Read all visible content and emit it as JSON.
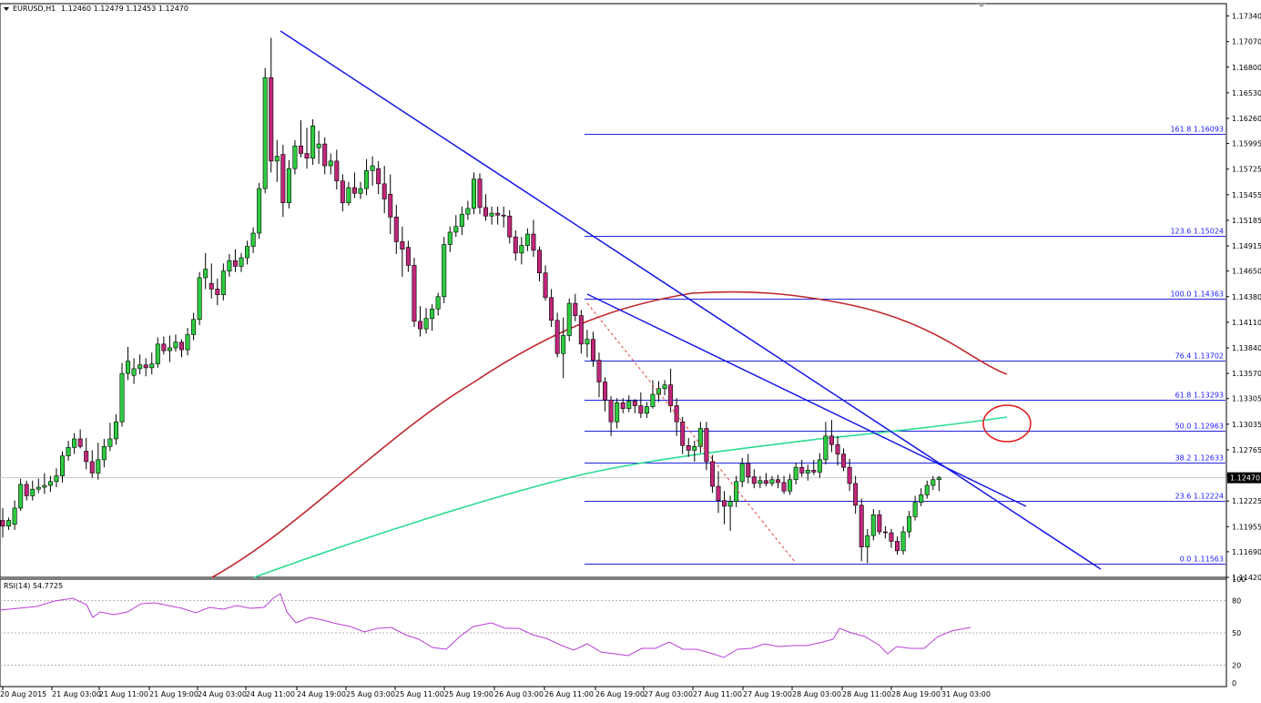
{
  "header": {
    "symbol": "EURUSD,H1",
    "ohlc": "1.12460 1.12479 1.12453 1.12470"
  },
  "rsi_header": "RSI(14) 54.7725",
  "colors": {
    "background": "#ffffff",
    "grid": "#e4e4e4",
    "frame": "#000000",
    "bull": "#2ecc40",
    "bear": "#c0277a",
    "trendline": "#1616e6",
    "fib": "#2222dd",
    "ma_slow": "#c0262c",
    "ma_fast": "#2cdc94",
    "rsi": "#b73fd6",
    "retrace_dash": "#e0403a",
    "circle": "#e01818",
    "price_tag": "#000000"
  },
  "chart_data": {
    "type": "candlestick",
    "title": "EURUSD,H1",
    "ylim": [
      1.1142,
      1.1747
    ],
    "price_ticks": [
      "1.17340",
      "1.17070",
      "1.16800",
      "1.16530",
      "1.16260",
      "1.15995",
      "1.15725",
      "1.15455",
      "1.15185",
      "1.14915",
      "1.14650",
      "1.14380",
      "1.14110",
      "1.13840",
      "1.13570",
      "1.13305",
      "1.13035",
      "1.12765",
      "1.12495",
      "1.12225",
      "1.11955",
      "1.11690",
      "1.11420"
    ],
    "current_price": "1.12470",
    "x_ticks": [
      "20 Aug 2015",
      "21 Aug 03:00",
      "21 Aug 11:00",
      "21 Aug 19:00",
      "24 Aug 03:00",
      "24 Aug 11:00",
      "24 Aug 19:00",
      "25 Aug 03:00",
      "25 Aug 11:00",
      "25 Aug 19:00",
      "26 Aug 03:00",
      "26 Aug 11:00",
      "26 Aug 19:00",
      "27 Aug 03:00",
      "27 Aug 11:00",
      "27 Aug 19:00",
      "28 Aug 03:00",
      "28 Aug 11:00",
      "28 Aug 19:00",
      "31 Aug 03:00"
    ],
    "fib_levels": [
      {
        "label": "161.8 1.16093",
        "price": 1.16093
      },
      {
        "label": "123.6 1.15024",
        "price": 1.15024
      },
      {
        "label": "100.0 1.14363",
        "price": 1.14363
      },
      {
        "label": "76.4 1.13702",
        "price": 1.13702
      },
      {
        "label": "61.8 1.13293",
        "price": 1.13293
      },
      {
        "label": "50.0 1.12963",
        "price": 1.12963
      },
      {
        "label": "38.2 1.12633",
        "price": 1.12633
      },
      {
        "label": "23.6 1.12224",
        "price": 1.12224
      },
      {
        "label": "0.0 1.11563",
        "price": 1.11563
      }
    ],
    "candles": [
      [
        1.1202,
        1.1215,
        1.1184,
        1.1196
      ],
      [
        1.1196,
        1.1205,
        1.1192,
        1.1202
      ],
      [
        1.1198,
        1.1223,
        1.1192,
        1.1215
      ],
      [
        1.1215,
        1.1246,
        1.1212,
        1.124
      ],
      [
        1.124,
        1.1244,
        1.1223,
        1.1228
      ],
      [
        1.1228,
        1.1244,
        1.1223,
        1.1235
      ],
      [
        1.1235,
        1.1246,
        1.1231,
        1.1237
      ],
      [
        1.1237,
        1.1252,
        1.123,
        1.1239
      ],
      [
        1.1239,
        1.1249,
        1.1232,
        1.1243
      ],
      [
        1.1243,
        1.1257,
        1.1237,
        1.1249
      ],
      [
        1.1249,
        1.1275,
        1.1242,
        1.127
      ],
      [
        1.127,
        1.1286,
        1.1265,
        1.1279
      ],
      [
        1.1279,
        1.1294,
        1.1272,
        1.1288
      ],
      [
        1.1288,
        1.1298,
        1.1278,
        1.128
      ],
      [
        1.1275,
        1.1289,
        1.1256,
        1.1264
      ],
      [
        1.1264,
        1.1276,
        1.1247,
        1.1252
      ],
      [
        1.1252,
        1.1284,
        1.1245,
        1.1266
      ],
      [
        1.1266,
        1.1288,
        1.1258,
        1.128
      ],
      [
        1.128,
        1.1305,
        1.1275,
        1.1288
      ],
      [
        1.1288,
        1.1314,
        1.1282,
        1.1306
      ],
      [
        1.1306,
        1.1368,
        1.1301,
        1.1357
      ],
      [
        1.1357,
        1.1385,
        1.135,
        1.137
      ],
      [
        1.1355,
        1.1373,
        1.1346,
        1.1362
      ],
      [
        1.1362,
        1.1377,
        1.1356,
        1.1366
      ],
      [
        1.1366,
        1.1373,
        1.1354,
        1.1363
      ],
      [
        1.1363,
        1.1379,
        1.1356,
        1.1367
      ],
      [
        1.1367,
        1.1395,
        1.1363,
        1.1388
      ],
      [
        1.1388,
        1.1396,
        1.1377,
        1.1381
      ],
      [
        1.1381,
        1.1397,
        1.1369,
        1.1384
      ],
      [
        1.1384,
        1.1398,
        1.138,
        1.139
      ],
      [
        1.139,
        1.1393,
        1.1374,
        1.1382
      ],
      [
        1.1382,
        1.1405,
        1.1376,
        1.1398
      ],
      [
        1.1398,
        1.1421,
        1.1392,
        1.1414
      ],
      [
        1.1414,
        1.1464,
        1.1408,
        1.1458
      ],
      [
        1.1458,
        1.1484,
        1.1446,
        1.1467
      ],
      [
        1.1452,
        1.1473,
        1.1436,
        1.1446
      ],
      [
        1.1446,
        1.1457,
        1.1429,
        1.144
      ],
      [
        1.144,
        1.1473,
        1.1434,
        1.1465
      ],
      [
        1.1465,
        1.1483,
        1.1459,
        1.1476
      ],
      [
        1.1476,
        1.1488,
        1.1464,
        1.147
      ],
      [
        1.147,
        1.1484,
        1.1464,
        1.1479
      ],
      [
        1.1479,
        1.1497,
        1.1472,
        1.1491
      ],
      [
        1.1491,
        1.1511,
        1.1484,
        1.1505
      ],
      [
        1.1505,
        1.1558,
        1.1499,
        1.1552
      ],
      [
        1.1552,
        1.1679,
        1.1547,
        1.1669
      ],
      [
        1.1669,
        1.1711,
        1.1569,
        1.1581
      ],
      [
        1.1581,
        1.1603,
        1.1559,
        1.1586
      ],
      [
        1.1588,
        1.1598,
        1.1522,
        1.1537
      ],
      [
        1.1537,
        1.1582,
        1.1531,
        1.1573
      ],
      [
        1.1573,
        1.1603,
        1.1567,
        1.1597
      ],
      [
        1.1597,
        1.1624,
        1.1585,
        1.1589
      ],
      [
        1.1589,
        1.1616,
        1.1573,
        1.1584
      ],
      [
        1.1584,
        1.1625,
        1.1577,
        1.1618
      ],
      [
        1.1595,
        1.1613,
        1.1578,
        1.1599
      ],
      [
        1.1599,
        1.1606,
        1.1567,
        1.1576
      ],
      [
        1.1576,
        1.1589,
        1.1567,
        1.1581
      ],
      [
        1.1581,
        1.1593,
        1.1551,
        1.156
      ],
      [
        1.156,
        1.1567,
        1.1528,
        1.1537
      ],
      [
        1.1537,
        1.1559,
        1.1534,
        1.1553
      ],
      [
        1.1553,
        1.1569,
        1.1542,
        1.1547
      ],
      [
        1.1547,
        1.1559,
        1.1541,
        1.1552
      ],
      [
        1.1552,
        1.1583,
        1.1545,
        1.1571
      ],
      [
        1.1571,
        1.1586,
        1.1555,
        1.1576
      ],
      [
        1.1573,
        1.1581,
        1.1546,
        1.1557
      ],
      [
        1.1557,
        1.1576,
        1.1526,
        1.1541
      ],
      [
        1.1546,
        1.1567,
        1.1504,
        1.1522
      ],
      [
        1.1522,
        1.1535,
        1.1483,
        1.1496
      ],
      [
        1.1496,
        1.1512,
        1.1459,
        1.1488
      ],
      [
        1.149,
        1.1497,
        1.1464,
        1.1471
      ],
      [
        1.1471,
        1.1479,
        1.1406,
        1.1412
      ],
      [
        1.1412,
        1.1428,
        1.1396,
        1.1404
      ],
      [
        1.1404,
        1.1426,
        1.1399,
        1.1415
      ],
      [
        1.1415,
        1.143,
        1.1402,
        1.1425
      ],
      [
        1.1425,
        1.1442,
        1.1418,
        1.1438
      ],
      [
        1.1438,
        1.1501,
        1.1431,
        1.1493
      ],
      [
        1.1493,
        1.1512,
        1.1485,
        1.1506
      ],
      [
        1.1506,
        1.1524,
        1.1501,
        1.1512
      ],
      [
        1.1512,
        1.1533,
        1.1503,
        1.1525
      ],
      [
        1.1525,
        1.1539,
        1.1519,
        1.1531
      ],
      [
        1.1531,
        1.1569,
        1.1525,
        1.1562
      ],
      [
        1.1562,
        1.1568,
        1.1525,
        1.1532
      ],
      [
        1.1532,
        1.1546,
        1.1518,
        1.1523
      ],
      [
        1.1523,
        1.1533,
        1.1514,
        1.1526
      ],
      [
        1.1526,
        1.1533,
        1.1514,
        1.1524
      ],
      [
        1.1524,
        1.1533,
        1.1511,
        1.1523
      ],
      [
        1.1523,
        1.1529,
        1.1494,
        1.1501
      ],
      [
        1.1501,
        1.1508,
        1.1476,
        1.1484
      ],
      [
        1.1484,
        1.1501,
        1.1472,
        1.1492
      ],
      [
        1.1492,
        1.151,
        1.1486,
        1.1504
      ],
      [
        1.1504,
        1.1519,
        1.148,
        1.1487
      ],
      [
        1.1487,
        1.1491,
        1.1454,
        1.1463
      ],
      [
        1.1463,
        1.1471,
        1.1434,
        1.1437
      ],
      [
        1.1437,
        1.1446,
        1.1406,
        1.1413
      ],
      [
        1.1413,
        1.1421,
        1.1374,
        1.1378
      ],
      [
        1.1378,
        1.1416,
        1.1352,
        1.1397
      ],
      [
        1.1397,
        1.1436,
        1.1391,
        1.1431
      ],
      [
        1.1431,
        1.1441,
        1.1412,
        1.1418
      ],
      [
        1.1418,
        1.1424,
        1.1378,
        1.1388
      ],
      [
        1.1388,
        1.1403,
        1.1374,
        1.1393
      ],
      [
        1.1393,
        1.1401,
        1.1364,
        1.1371
      ],
      [
        1.1371,
        1.1379,
        1.1332,
        1.1348
      ],
      [
        1.1348,
        1.1353,
        1.1317,
        1.1329
      ],
      [
        1.1329,
        1.1333,
        1.1291,
        1.1306
      ],
      [
        1.1306,
        1.1331,
        1.1299,
        1.1326
      ],
      [
        1.1326,
        1.1331,
        1.1315,
        1.132
      ],
      [
        1.132,
        1.1334,
        1.1316,
        1.1328
      ],
      [
        1.1328,
        1.133,
        1.1315,
        1.1323
      ],
      [
        1.1323,
        1.1337,
        1.131,
        1.1315
      ],
      [
        1.1315,
        1.1327,
        1.131,
        1.1322
      ],
      [
        1.1322,
        1.135,
        1.132,
        1.1335
      ],
      [
        1.1335,
        1.1349,
        1.1327,
        1.1341
      ],
      [
        1.1341,
        1.135,
        1.1334,
        1.1345
      ],
      [
        1.1345,
        1.1362,
        1.1316,
        1.1323
      ],
      [
        1.1323,
        1.1331,
        1.1291,
        1.1306
      ],
      [
        1.1306,
        1.1311,
        1.1272,
        1.1281
      ],
      [
        1.1281,
        1.1289,
        1.1269,
        1.1276
      ],
      [
        1.1276,
        1.1286,
        1.1264,
        1.128
      ],
      [
        1.128,
        1.1306,
        1.1273,
        1.1299
      ],
      [
        1.1299,
        1.1306,
        1.1255,
        1.1264
      ],
      [
        1.1264,
        1.1271,
        1.1231,
        1.1238
      ],
      [
        1.1238,
        1.1254,
        1.121,
        1.1223
      ],
      [
        1.1223,
        1.1233,
        1.1198,
        1.1217
      ],
      [
        1.1217,
        1.1228,
        1.1191,
        1.1222
      ],
      [
        1.1222,
        1.1249,
        1.1216,
        1.1243
      ],
      [
        1.1243,
        1.1268,
        1.1237,
        1.1262
      ],
      [
        1.1262,
        1.1272,
        1.1241,
        1.1248
      ],
      [
        1.1248,
        1.1256,
        1.1236,
        1.1241
      ],
      [
        1.1241,
        1.1249,
        1.1236,
        1.1244
      ],
      [
        1.1244,
        1.1252,
        1.1238,
        1.1241
      ],
      [
        1.1241,
        1.1249,
        1.1238,
        1.1245
      ],
      [
        1.1245,
        1.125,
        1.1236,
        1.1242
      ],
      [
        1.1242,
        1.1249,
        1.123,
        1.1233
      ],
      [
        1.1233,
        1.1251,
        1.1229,
        1.1245
      ],
      [
        1.1245,
        1.1263,
        1.124,
        1.1258
      ],
      [
        1.1258,
        1.1266,
        1.1248,
        1.1252
      ],
      [
        1.1252,
        1.1261,
        1.1244,
        1.1255
      ],
      [
        1.1255,
        1.1266,
        1.125,
        1.1253
      ],
      [
        1.1253,
        1.1273,
        1.1247,
        1.1266
      ],
      [
        1.1266,
        1.1306,
        1.1261,
        1.1291
      ],
      [
        1.1291,
        1.1308,
        1.1274,
        1.1282
      ],
      [
        1.1282,
        1.1291,
        1.126,
        1.1272
      ],
      [
        1.1272,
        1.1278,
        1.1254,
        1.1258
      ],
      [
        1.1258,
        1.1267,
        1.1233,
        1.1241
      ],
      [
        1.1241,
        1.1249,
        1.1209,
        1.1218
      ],
      [
        1.1218,
        1.1225,
        1.1159,
        1.1174
      ],
      [
        1.1174,
        1.1193,
        1.1157,
        1.1186
      ],
      [
        1.1186,
        1.1214,
        1.1181,
        1.1208
      ],
      [
        1.1208,
        1.1213,
        1.1187,
        1.119
      ],
      [
        1.119,
        1.1196,
        1.1183,
        1.1189
      ],
      [
        1.1189,
        1.1193,
        1.1173,
        1.118
      ],
      [
        1.118,
        1.1185,
        1.1166,
        1.117
      ],
      [
        1.117,
        1.1196,
        1.1166,
        1.119
      ],
      [
        1.119,
        1.1212,
        1.1184,
        1.1206
      ],
      [
        1.1206,
        1.1228,
        1.1202,
        1.1221
      ],
      [
        1.1221,
        1.1236,
        1.1217,
        1.1229
      ],
      [
        1.1229,
        1.1244,
        1.1225,
        1.1239
      ],
      [
        1.1239,
        1.1249,
        1.1234,
        1.1245
      ],
      [
        1.1245,
        1.1249,
        1.1233,
        1.1247
      ]
    ],
    "rsi": {
      "ylim": [
        0,
        100
      ],
      "ticks": [
        "100",
        "80",
        "50",
        "20",
        "0"
      ],
      "levels": [
        80,
        50,
        20
      ]
    }
  }
}
